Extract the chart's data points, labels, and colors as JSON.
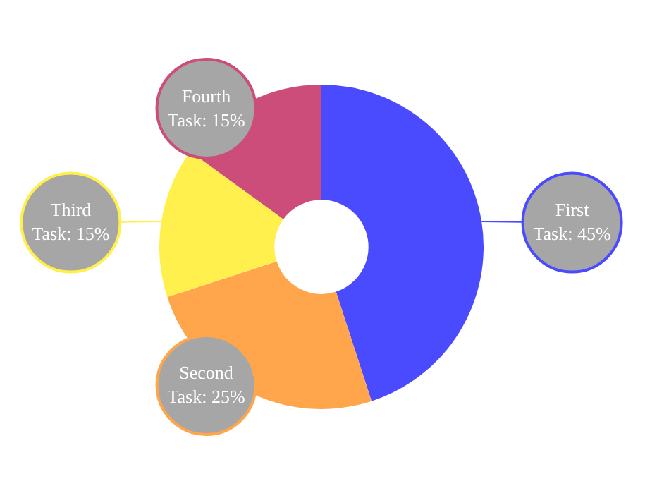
{
  "chart_data": {
    "type": "donut",
    "categories": [
      "First Task",
      "Second Task",
      "Third Task",
      "Fourth Task"
    ],
    "values": [
      45,
      25,
      15,
      15
    ],
    "value_labels": [
      "45%",
      "25%",
      "15%",
      "15%"
    ],
    "colors": [
      "#4a4aff",
      "#ffa64d",
      "#fff04d",
      "#cc4d7a"
    ]
  }
}
